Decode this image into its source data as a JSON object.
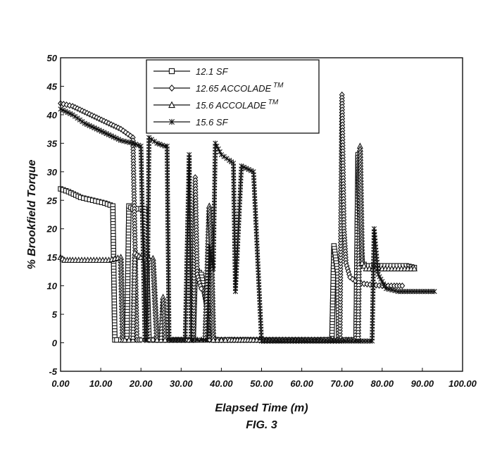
{
  "caption": "FIG. 3",
  "chart_data": {
    "type": "line",
    "xlabel": "Elapsed Time (m)",
    "ylabel": "% Brookfield Torque",
    "xlim": [
      0,
      100
    ],
    "ylim": [
      -5,
      50
    ],
    "x_ticks": [
      "0.00",
      "10.00",
      "20.00",
      "30.00",
      "40.00",
      "50.00",
      "60.00",
      "70.00",
      "80.00",
      "90.00",
      "100.00"
    ],
    "y_ticks": [
      "-5",
      "0",
      "5",
      "10",
      "15",
      "20",
      "25",
      "30",
      "35",
      "40",
      "45",
      "50"
    ],
    "legend_position": "top-center",
    "grid": false,
    "series": [
      {
        "name": "12.1 SF",
        "marker": "square",
        "x": [
          0,
          2,
          5,
          8,
          11,
          13,
          13.5,
          14,
          15,
          15.8,
          16.5,
          17,
          18,
          19,
          20,
          21,
          22,
          22.5,
          24,
          27,
          30,
          32,
          33,
          33.5,
          35,
          38,
          42,
          46,
          50,
          55,
          60,
          65,
          67.5,
          68,
          69,
          69.2,
          70,
          71,
          72,
          73,
          73.5,
          74,
          74.5,
          75,
          76,
          78,
          80,
          83,
          86,
          88
        ],
        "y": [
          27,
          26.5,
          25.5,
          25,
          24.5,
          24,
          0.5,
          0.5,
          0.5,
          0.5,
          0.5,
          24,
          23.5,
          23.5,
          23.5,
          23.5,
          0.5,
          0.5,
          0.5,
          0.5,
          0.5,
          0.5,
          0.5,
          13,
          12,
          0.5,
          0.5,
          0.5,
          0.5,
          0.5,
          0.5,
          0.5,
          0.5,
          17,
          12,
          0.5,
          0.5,
          0.5,
          0.5,
          0.5,
          0.5,
          33,
          20,
          14,
          13.5,
          13.5,
          13.5,
          13.5,
          13.5,
          13.2
        ]
      },
      {
        "name": "12.65 ACCOLADE TM",
        "marker": "diamond",
        "x": [
          0,
          3,
          6,
          9,
          12,
          15,
          18,
          19,
          19.5,
          20,
          21,
          22,
          23,
          24,
          25,
          26,
          27,
          28,
          29,
          30,
          31,
          32,
          33,
          33.5,
          34,
          35,
          36,
          37,
          38,
          40,
          44,
          48,
          52,
          56,
          60,
          64,
          66,
          68,
          69,
          69.5,
          70,
          70.5,
          71,
          72,
          74,
          77,
          80,
          83,
          85
        ],
        "y": [
          42,
          41.5,
          40.5,
          39.5,
          38.5,
          37.5,
          36,
          0.5,
          0.5,
          0.5,
          0.5,
          0.5,
          0.5,
          0.5,
          0.5,
          0.5,
          0.5,
          0.5,
          0.5,
          0.5,
          0.5,
          0.5,
          0.5,
          29,
          12,
          9.5,
          9.5,
          0.5,
          0.5,
          0.5,
          0.5,
          0.5,
          0.5,
          0.5,
          0.5,
          0.5,
          0.5,
          0.5,
          0.5,
          0.5,
          43.5,
          20,
          14,
          11.5,
          10.5,
          10.2,
          10,
          10,
          10
        ]
      },
      {
        "name": "15.6 ACCOLADE TM",
        "marker": "triangle",
        "x": [
          0,
          1,
          3,
          6,
          9,
          12,
          15,
          15.5,
          16,
          17,
          18,
          18.5,
          19,
          20,
          21,
          22,
          23,
          24,
          25,
          25.5,
          26,
          27,
          28,
          30,
          32,
          34,
          35,
          36,
          37,
          37.5,
          38,
          39,
          40,
          41,
          42,
          44,
          46,
          48,
          52,
          56,
          60,
          64,
          68,
          70,
          71,
          73,
          74,
          74.5,
          75,
          76,
          80,
          84,
          88
        ],
        "y": [
          15,
          14.5,
          14.5,
          14.5,
          14.5,
          14.5,
          15,
          0.5,
          0.5,
          0.5,
          0.5,
          15.8,
          15.5,
          15,
          14.8,
          14.8,
          14.8,
          0.5,
          0.5,
          8,
          0.5,
          0.5,
          0.5,
          0.5,
          0.5,
          0.5,
          0.5,
          0.5,
          24,
          18,
          0.5,
          0.5,
          0.5,
          0.5,
          0.5,
          0.5,
          0.5,
          0.5,
          0.5,
          0.5,
          0.5,
          0.5,
          0.5,
          0.5,
          0.5,
          0.5,
          0.5,
          34.5,
          14,
          13,
          13,
          13,
          13
        ]
      },
      {
        "name": "15.6 SF",
        "marker": "x",
        "x": [
          0,
          3,
          6,
          9,
          12,
          15,
          18,
          20,
          21,
          21.5,
          22,
          24,
          26,
          26.5,
          27,
          29,
          31,
          32,
          32.5,
          33,
          34,
          35,
          36,
          36.5,
          37,
          38,
          38.5,
          40,
          42,
          43,
          43.5,
          45,
          48,
          50,
          55,
          60,
          65,
          70,
          74,
          77,
          77.5,
          78,
          79,
          81,
          84,
          87,
          90,
          93
        ],
        "y": [
          41,
          40,
          38.5,
          37.5,
          36.5,
          35.5,
          35,
          34.5,
          0.5,
          0.5,
          36,
          35,
          34.5,
          34.5,
          0.5,
          0.5,
          0.5,
          33,
          0.5,
          0.5,
          0.5,
          0.5,
          0.5,
          0.5,
          17,
          13,
          35,
          33,
          32,
          31.5,
          9,
          31,
          30,
          0.3,
          0.3,
          0.3,
          0.3,
          0.3,
          0.3,
          0.3,
          0.3,
          20,
          12,
          9.5,
          9,
          9,
          9,
          9
        ]
      }
    ]
  }
}
